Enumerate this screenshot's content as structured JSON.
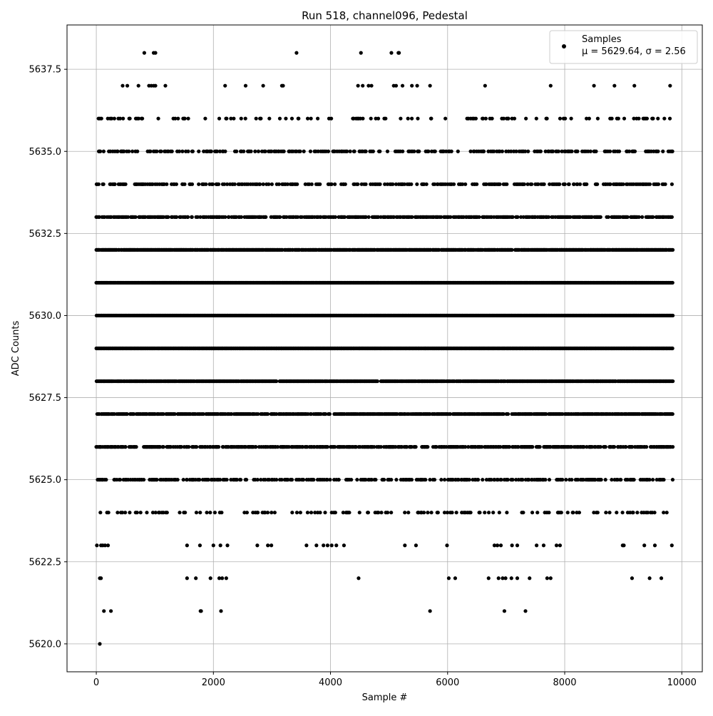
{
  "chart_data": {
    "type": "scatter",
    "title": "Run 518, channel096, Pedestal",
    "xlabel": "Sample #",
    "ylabel": "ADC Counts",
    "xlim": [
      -500,
      10350
    ],
    "ylim": [
      5619.15,
      5638.85
    ],
    "xticks": [
      0,
      2000,
      4000,
      6000,
      8000,
      10000
    ],
    "xtick_labels": [
      "0",
      "2000",
      "4000",
      "6000",
      "8000",
      "10000"
    ],
    "yticks": [
      5620.0,
      5622.5,
      5625.0,
      5627.5,
      5630.0,
      5632.5,
      5635.0,
      5637.5
    ],
    "ytick_labels": [
      "5620.0",
      "5622.5",
      "5625.0",
      "5627.5",
      "5630.0",
      "5632.5",
      "5635.0",
      "5637.5"
    ],
    "grid": true,
    "legend": {
      "placement": "top-right",
      "entries": [
        {
          "label": "Samples",
          "sublabel": "μ = 5629.64, σ = 2.56"
        }
      ]
    },
    "marker_color": "#000000",
    "series": [
      {
        "name": "Samples",
        "description": "x spans 0–9850 in sample index; y integer ADC levels",
        "x_range": [
          0,
          9850
        ],
        "level_density": [
          {
            "y": 5620,
            "x": [
              60
            ]
          },
          {
            "y": 5621,
            "x": [
              130,
              250,
              1780,
              1790,
              2130,
              5700,
              6970,
              7330
            ]
          },
          {
            "y": 5622,
            "x": [
              60,
              80,
              1550,
              1700,
              1950,
              2100,
              2150,
              2220,
              4480,
              6020,
              6130,
              6700,
              6870,
              6940,
              6990,
              7090,
              7190,
              7400,
              7700,
              7760,
              9150,
              9450,
              9650
            ]
          },
          {
            "y": 5623,
            "x": [
              10,
              80,
              110,
              150,
              200,
              1550,
              1770,
              2000,
              2120,
              2240,
              2750,
              2930,
              2990,
              3590,
              3760,
              3880,
              3950,
              4020,
              4100,
              4230,
              5270,
              5460,
              5990,
              6800,
              6850,
              6910,
              7100,
              7190,
              7520,
              7640,
              7860,
              7920,
              8990,
              9010,
              9360,
              9540,
              9830
            ]
          },
          {
            "y": 5637,
            "x": [
              450,
              530,
              720,
              900,
              940,
              980,
              1010,
              1180,
              2200,
              2550,
              2850,
              3170,
              3190,
              4470,
              4550,
              4650,
              4700,
              5080,
              5120,
              5230,
              5390,
              5480,
              5700,
              6640,
              7760,
              8500,
              8850,
              9190,
              9800
            ]
          },
          {
            "y": 5638,
            "x": [
              820,
              980,
              1010,
              3420,
              4520,
              5040,
              5160,
              5170
            ]
          }
        ],
        "band_levels": [
          {
            "y": 5624,
            "fill": 0.18
          },
          {
            "y": 5625,
            "fill": 0.45
          },
          {
            "y": 5626,
            "fill": 0.62
          },
          {
            "y": 5627,
            "fill": 0.8
          },
          {
            "y": 5628,
            "fill": 0.95
          },
          {
            "y": 5629,
            "fill": 1.0
          },
          {
            "y": 5630,
            "fill": 1.0
          },
          {
            "y": 5631,
            "fill": 1.0
          },
          {
            "y": 5632,
            "fill": 0.92
          },
          {
            "y": 5633,
            "fill": 0.62
          },
          {
            "y": 5634,
            "fill": 0.42
          },
          {
            "y": 5635,
            "fill": 0.32
          },
          {
            "y": 5636,
            "fill": 0.16
          }
        ]
      }
    ]
  }
}
